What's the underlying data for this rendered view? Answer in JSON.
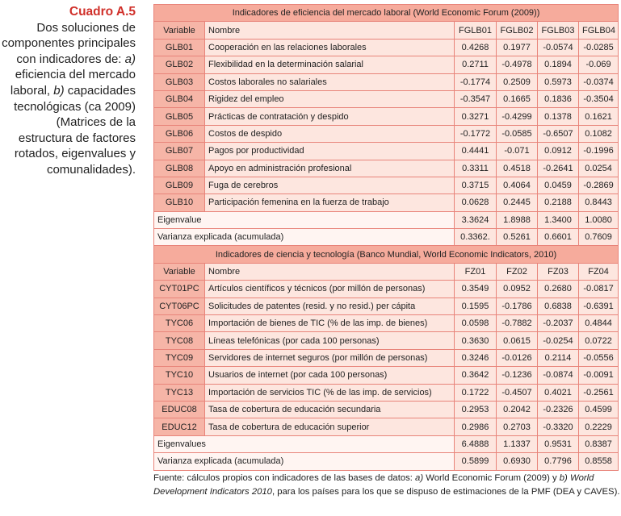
{
  "caption": {
    "title": "Cuadro A.5",
    "text": [
      "Dos soluciones de componentes principales con indicadores de: ",
      "a)",
      " eficiencia del mercado laboral, ",
      "b)",
      " capacidades tecnológicas (ca 2009)(Matrices de la estructura de factores rotados, eigenvalues y comunalidades)."
    ]
  },
  "table": {
    "sections": [
      {
        "title": "Indicadores de eficiencia del mercado laboral (World Economic Forum (2009))",
        "header": [
          "Variable",
          "Nombre",
          "FGLB01",
          "FGLB02",
          "FGLB03",
          "FGLB04"
        ],
        "rows": [
          [
            "GLB01",
            "Cooperación en las relaciones laborales",
            "0.4268",
            "0.1977",
            "-0.0574",
            "-0.0285"
          ],
          [
            "GLB02",
            "Flexibilidad en la determinación salarial",
            "0.2711",
            "-0.4978",
            "0.1894",
            "-0.069"
          ],
          [
            "GLB03",
            "Costos laborales no salariales",
            "-0.1774",
            "0.2509",
            "0.5973",
            "-0.0374"
          ],
          [
            "GLB04",
            "Rigidez del empleo",
            "-0.3547",
            "0.1665",
            "0.1836",
            "-0.3504"
          ],
          [
            "GLB05",
            "Prácticas de contratación y despido",
            "0.3271",
            "-0.4299",
            "0.1378",
            "0.1621"
          ],
          [
            "GLB06",
            "Costos de despido",
            "-0.1772",
            "-0.0585",
            "-0.6507",
            "0.1082"
          ],
          [
            "GLB07",
            "Pagos por productividad",
            "0.4441",
            "-0.071",
            "0.0912",
            "-0.1996"
          ],
          [
            "GLB08",
            "Apoyo en administración profesional",
            "0.3311",
            "0.4518",
            "-0.2641",
            "0.0254"
          ],
          [
            "GLB09",
            "Fuga de cerebros",
            "0.3715",
            "0.4064",
            "0.0459",
            "-0.2869"
          ],
          [
            "GLB10",
            "Participación femenina en la fuerza de trabajo",
            "0.0628",
            "0.2445",
            "0.2188",
            "0.8443"
          ]
        ],
        "summary": [
          [
            "Eigenvalue",
            "3.3624",
            "1.8988",
            "1.3400",
            "1.0080"
          ],
          [
            "Varianza explicada (acumulada)",
            "0.3362.",
            "0.5261",
            "0.6601",
            "0.7609"
          ]
        ]
      },
      {
        "title": "Indicadores de ciencia y tecnología (Banco Mundial, World Economic Indicators, 2010)",
        "header": [
          "Variable",
          "Nombre",
          "FZ01",
          "FZ02",
          "FZ03",
          "FZ04"
        ],
        "rows": [
          [
            "CYT01PC",
            "Artículos científicos y técnicos (por millón de personas)",
            "0.3549",
            "0.0952",
            "0.2680",
            "-0.0817"
          ],
          [
            "CYT06PC",
            "Solicitudes de patentes (resid. y no resid.) per cápita",
            "0.1595",
            "-0.1786",
            "0.6838",
            "-0.6391"
          ],
          [
            "TYC06",
            "Importación de bienes de TIC (% de las imp. de bienes)",
            "0.0598",
            "-0.7882",
            "-0.2037",
            "0.4844"
          ],
          [
            "TYC08",
            "Líneas telefónicas (por cada 100 personas)",
            "0.3630",
            "0.0615",
            "-0.0254",
            "0.0722"
          ],
          [
            "TYC09",
            "Servidores de internet seguros (por millón de personas)",
            "0.3246",
            "-0.0126",
            "0.2114",
            "-0.0556"
          ],
          [
            "TYC10",
            "Usuarios de internet (por cada 100 personas)",
            "0.3642",
            "-0.1236",
            "-0.0874",
            "-0.0091"
          ],
          [
            "TYC13",
            "Importación de servicios TIC (% de las imp. de servicios)",
            "0.1722",
            "-0.4507",
            "0.4021",
            "-0.2561"
          ],
          [
            "EDUC08",
            "Tasa de cobertura de educación secundaria",
            "0.2953",
            "0.2042",
            "-0.2326",
            "0.4599"
          ],
          [
            "EDUC12",
            "Tasa de cobertura de educación superior",
            "0.2986",
            "0.2703",
            "-0.3320",
            "0.2229"
          ]
        ],
        "summary": [
          [
            "Eigenvalues",
            "6.4888",
            "1.1337",
            "0.9531",
            "0.8387"
          ],
          [
            "Varianza explicada (acumulada)",
            "0.5899",
            "0.6930",
            "0.7796",
            "0.8558"
          ]
        ]
      }
    ]
  },
  "footnote": [
    "Fuente: cálculos propios con indicadores de las bases de datos: ",
    "a)",
    " World Economic Forum (2009) y ",
    "b)",
    " ",
    "World Development Indicators 2010",
    ", para los países para los que se dispuso de estimaciones de la PMF (DEA y CAVES)."
  ]
}
